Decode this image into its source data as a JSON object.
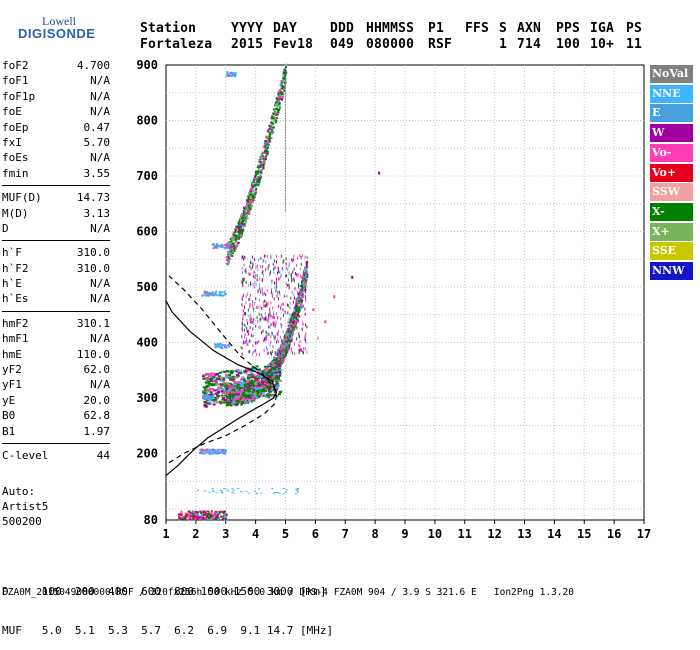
{
  "logo": {
    "line1": "Lowell",
    "line2": "DIGISONDE"
  },
  "header": {
    "labels": [
      "Station",
      "YYYY",
      "DAY",
      "DDD",
      "HHMMSS",
      "P1",
      "FFS",
      "S",
      "AXN",
      "PPS",
      "IGA",
      "PS"
    ],
    "values": [
      "Fortaleza",
      "2015",
      "Fev18",
      "049",
      "080000",
      "RSF",
      "",
      "1",
      "714",
      "100",
      "10+",
      "11"
    ]
  },
  "parameters": [
    {
      "name": "foF2",
      "value": "4.700"
    },
    {
      "name": "foF1",
      "value": "N/A"
    },
    {
      "name": "foF1p",
      "value": "N/A"
    },
    {
      "name": "foE",
      "value": "N/A"
    },
    {
      "name": "foEp",
      "value": "0.47"
    },
    {
      "name": "fxI",
      "value": "5.70"
    },
    {
      "name": "foEs",
      "value": "N/A"
    },
    {
      "name": "fmin",
      "value": "3.55"
    },
    {
      "name": "MUF(D)",
      "value": "14.73"
    },
    {
      "name": "M(D)",
      "value": "3.13"
    },
    {
      "name": "D",
      "value": "N/A"
    },
    {
      "name": "h`F",
      "value": "310.0"
    },
    {
      "name": "h`F2",
      "value": "310.0"
    },
    {
      "name": "h`E",
      "value": "N/A"
    },
    {
      "name": "h`Es",
      "value": "N/A"
    },
    {
      "name": "hmF2",
      "value": "310.1"
    },
    {
      "name": "hmF1",
      "value": "N/A"
    },
    {
      "name": "hmE",
      "value": "110.0"
    },
    {
      "name": "yF2",
      "value": "62.0"
    },
    {
      "name": "yF1",
      "value": "N/A"
    },
    {
      "name": "yE",
      "value": "20.0"
    },
    {
      "name": "B0",
      "value": "62.8"
    },
    {
      "name": "B1",
      "value": "1.97"
    },
    {
      "name": "C-level",
      "value": "44"
    }
  ],
  "auto": {
    "line1": "Auto:",
    "line2": "Artist5",
    "line3": "500200"
  },
  "legend": [
    {
      "label": "NoVal",
      "color": "#808080"
    },
    {
      "label": "NNE",
      "color": "#3cb4ff"
    },
    {
      "label": "E",
      "color": "#46a0dc"
    },
    {
      "label": "W",
      "color": "#a000a0"
    },
    {
      "label": "Vo-",
      "color": "#ff3cb4"
    },
    {
      "label": "Vo+",
      "color": "#e6001e"
    },
    {
      "label": "SSW",
      "color": "#f0a0a0"
    },
    {
      "label": "X-",
      "color": "#008000"
    },
    {
      "label": "X+",
      "color": "#78b45a"
    },
    {
      "label": "SSE",
      "color": "#c8c800"
    },
    {
      "label": "NNW",
      "color": "#1414c8"
    }
  ],
  "axes": {
    "x_ticks": [
      "1",
      "2",
      "3",
      "4",
      "5",
      "6",
      "7",
      "8",
      "9",
      "10",
      "11",
      "12",
      "13",
      "14",
      "15",
      "16",
      "17"
    ],
    "y_ticks": [
      "80",
      "200",
      "300",
      "400",
      "500",
      "600",
      "700",
      "800",
      "900"
    ]
  },
  "bottom": {
    "d_line": "D     100  200  400  600  800 1000 1500 3000 [km]",
    "muf_line": "MUF   5.0  5.1  5.3  5.7  6.2  6.9  9.1 14.7 [MHz]"
  },
  "footer": "FZA0M_2015049080000.RSF / 320fx256h 50 kHz 5.0 km / DPS-4 FZA0M 904 / 3.9 S 321.6 E   Ion2Png 1.3.20"
}
